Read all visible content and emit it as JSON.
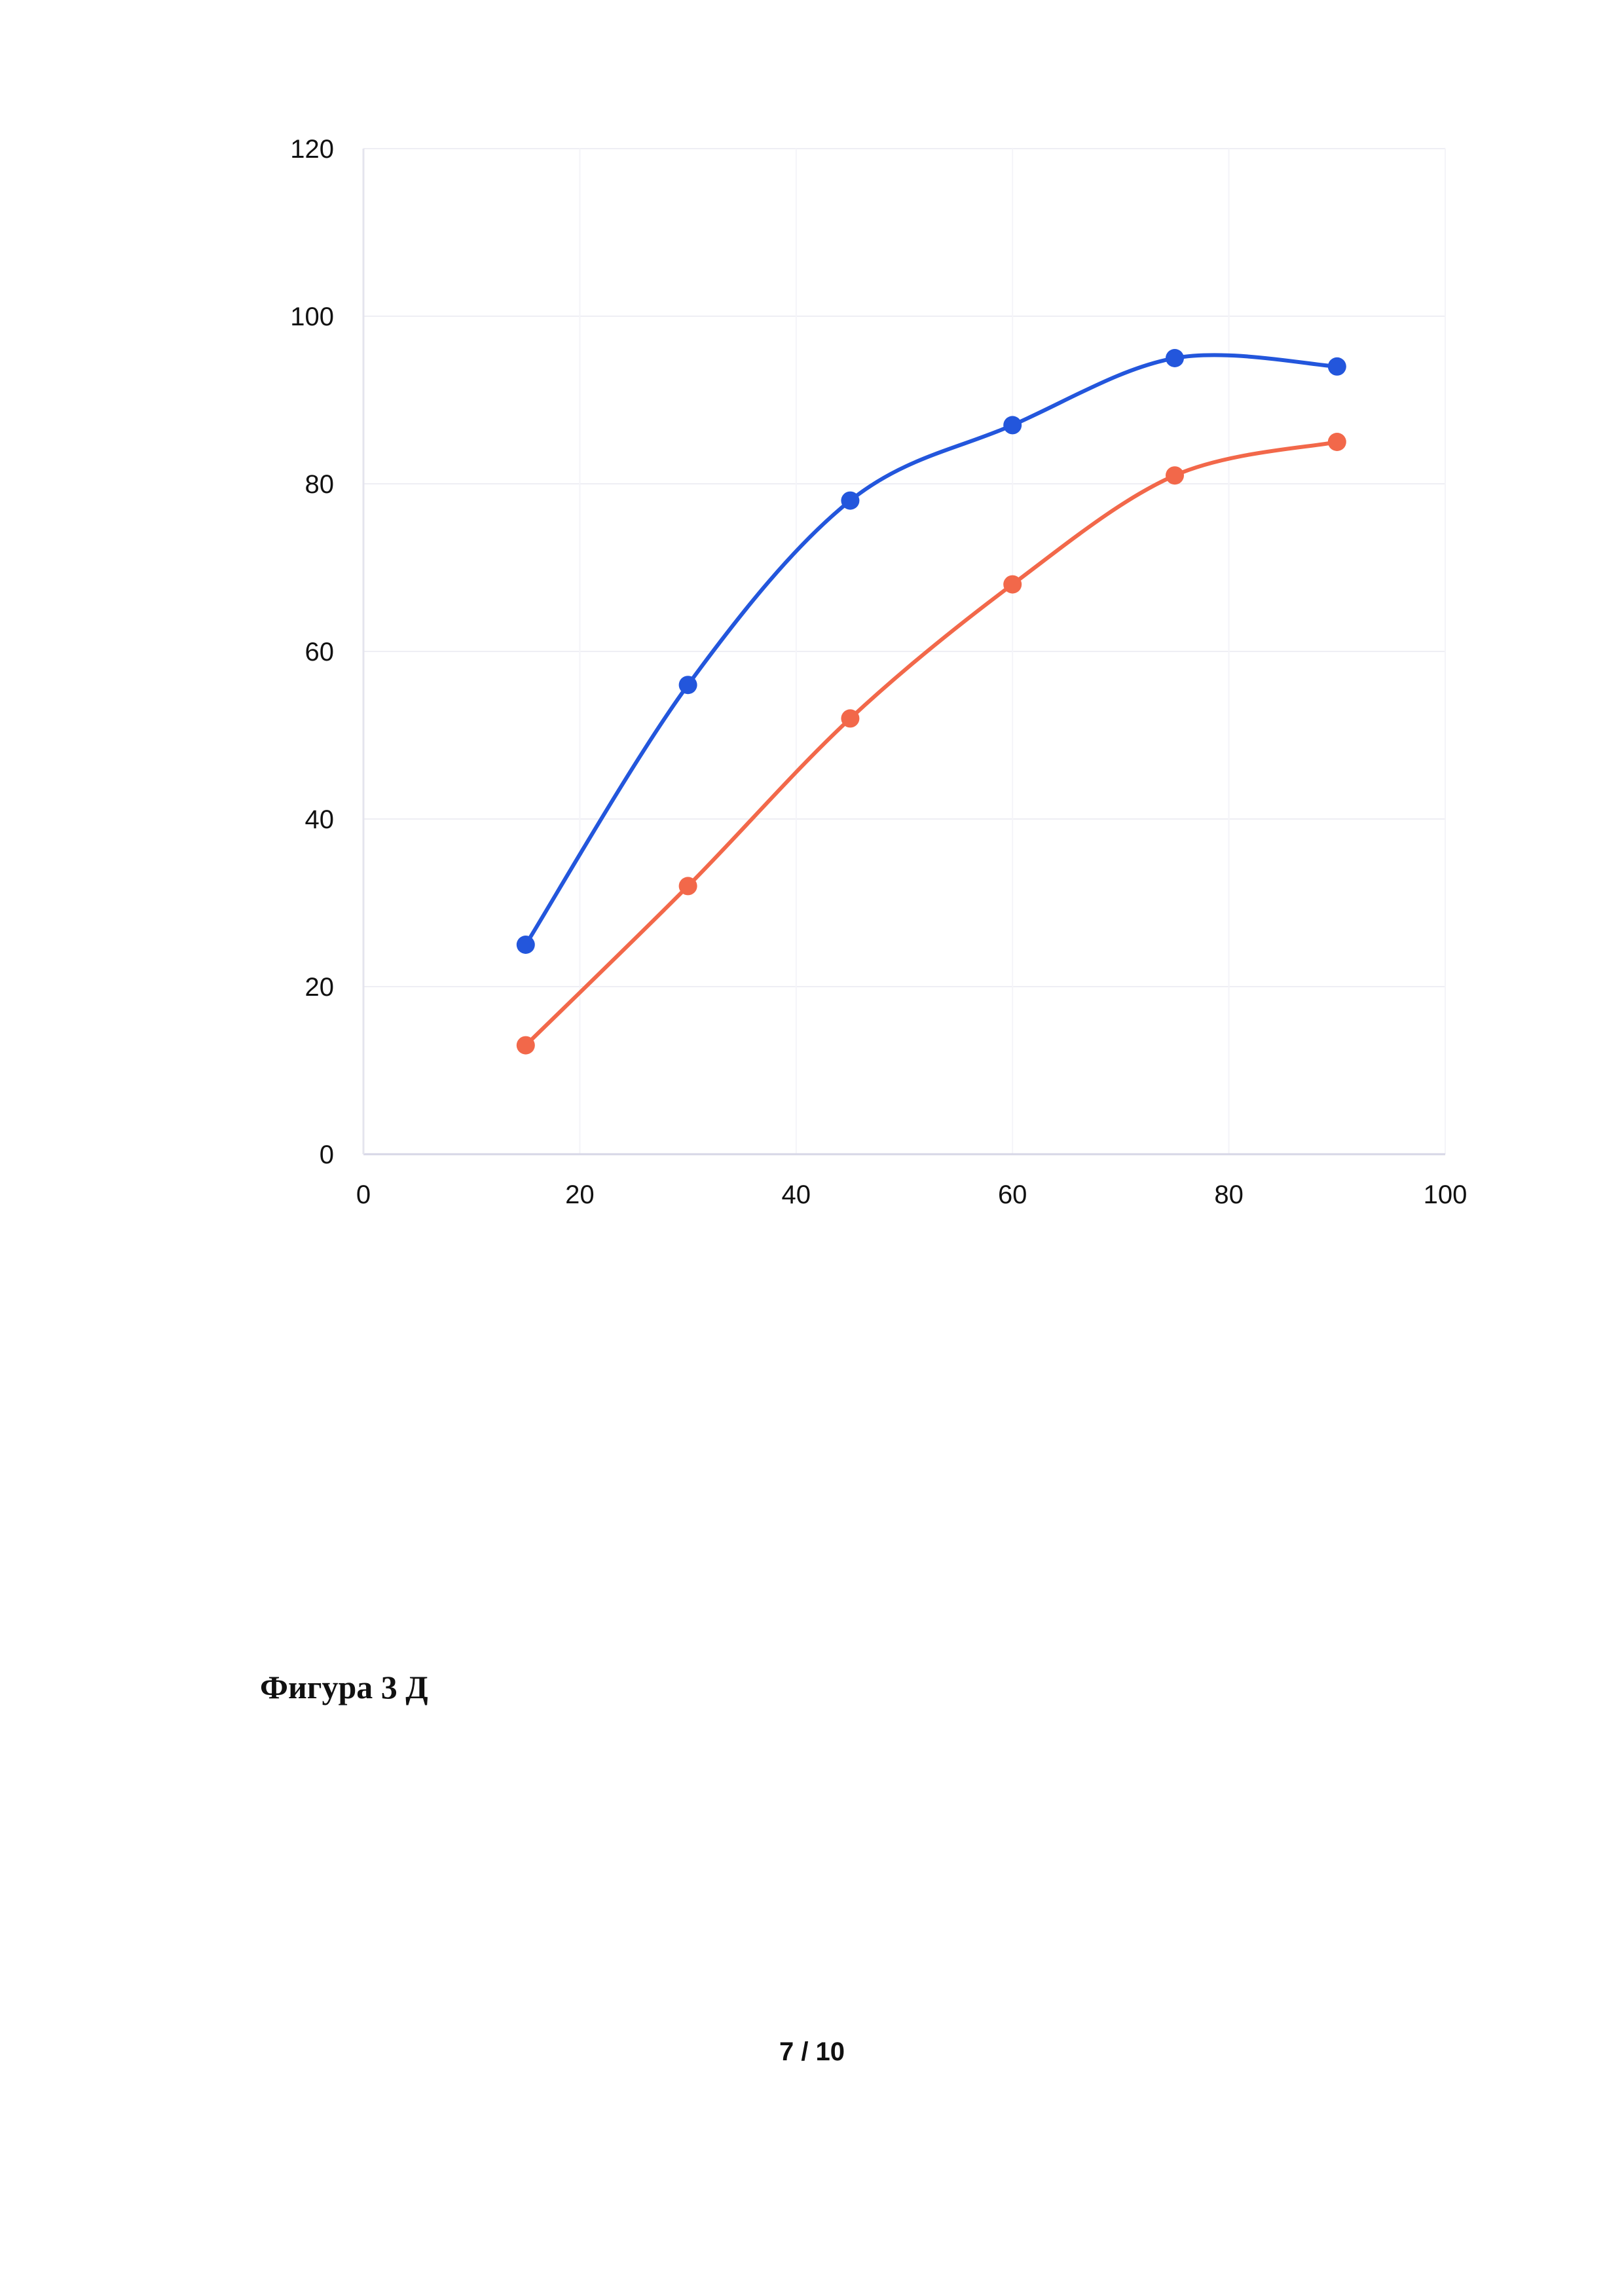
{
  "chart_data": {
    "type": "line",
    "x": [
      15,
      30,
      45,
      60,
      75,
      90
    ],
    "series": [
      {
        "values": [
          25,
          56,
          78,
          87,
          95,
          94
        ],
        "color": "#2356dc"
      },
      {
        "values": [
          13,
          32,
          52,
          68,
          81,
          85
        ],
        "color": "#f2684a"
      }
    ],
    "xlim": [
      0,
      100
    ],
    "ylim": [
      0,
      120
    ],
    "xticks": [
      0,
      20,
      40,
      60,
      80,
      100
    ],
    "yticks": [
      0,
      20,
      40,
      60,
      80,
      100,
      120
    ],
    "smooth": true,
    "markers": true,
    "grid": true,
    "legend": "none"
  },
  "caption": "Фигура 3 Д",
  "page_number": "7 / 10"
}
